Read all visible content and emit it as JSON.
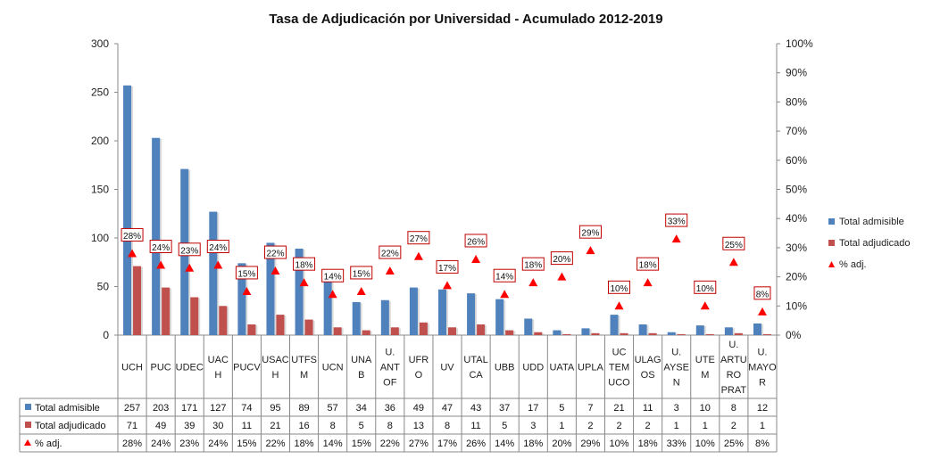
{
  "chart_data": {
    "type": "bar",
    "title": "Tasa de Adjudicación por Universidad - Acumulado 2012-2019",
    "categories": [
      [
        "UCH"
      ],
      [
        "PUC"
      ],
      [
        "UDEC"
      ],
      [
        "UAC",
        "H"
      ],
      [
        "PUCV"
      ],
      [
        "USAC",
        "H"
      ],
      [
        "UTFS",
        "M"
      ],
      [
        "UCN"
      ],
      [
        "UNA",
        "B"
      ],
      [
        "U.",
        "ANT",
        "OF"
      ],
      [
        "UFR",
        "O"
      ],
      [
        "UV"
      ],
      [
        "UTAL",
        "CA"
      ],
      [
        "UBB"
      ],
      [
        "UDD"
      ],
      [
        "UATA"
      ],
      [
        "UPLA"
      ],
      [
        "UC",
        "TEM",
        "UCO"
      ],
      [
        "ULAG",
        "OS"
      ],
      [
        "U.",
        "AYSE",
        "N"
      ],
      [
        "UTE",
        "M"
      ],
      [
        "U.",
        "ARTU",
        "RO",
        "PRAT"
      ],
      [
        "U.",
        "MAYO",
        "R"
      ]
    ],
    "series": [
      {
        "name": "Total admisible",
        "kind": "bar",
        "axis": "left",
        "color": "#4F81BD",
        "values": [
          257,
          203,
          171,
          127,
          74,
          95,
          89,
          57,
          34,
          36,
          49,
          47,
          43,
          37,
          17,
          5,
          7,
          21,
          11,
          3,
          10,
          8,
          12
        ]
      },
      {
        "name": "Total adjudicado",
        "kind": "bar",
        "axis": "left",
        "color": "#C0504D",
        "values": [
          71,
          49,
          39,
          30,
          11,
          21,
          16,
          8,
          5,
          8,
          13,
          8,
          11,
          5,
          3,
          1,
          2,
          2,
          2,
          1,
          1,
          2,
          1
        ]
      },
      {
        "name": "% adj.",
        "kind": "marker",
        "axis": "right",
        "color": "#FF0000",
        "values": [
          28,
          24,
          23,
          24,
          15,
          22,
          18,
          14,
          15,
          22,
          27,
          17,
          26,
          14,
          18,
          20,
          29,
          10,
          18,
          33,
          10,
          25,
          8
        ],
        "labels": [
          "28%",
          "24%",
          "23%",
          "24%",
          "15%",
          "22%",
          "18%",
          "14%",
          "15%",
          "22%",
          "27%",
          "17%",
          "26%",
          "14%",
          "18%",
          "20%",
          "29%",
          "10%",
          "18%",
          "33%",
          "10%",
          "25%",
          "8%"
        ]
      }
    ],
    "y_left": {
      "min": 0,
      "max": 300,
      "ticks": [
        "0",
        "50",
        "100",
        "150",
        "200",
        "250",
        "300"
      ]
    },
    "y_right": {
      "min": 0,
      "max": 100,
      "ticks": [
        "0%",
        "10%",
        "20%",
        "30%",
        "40%",
        "50%",
        "60%",
        "70%",
        "80%",
        "90%",
        "100%"
      ]
    },
    "legend_position": "right",
    "grid": false,
    "data_table": true
  }
}
